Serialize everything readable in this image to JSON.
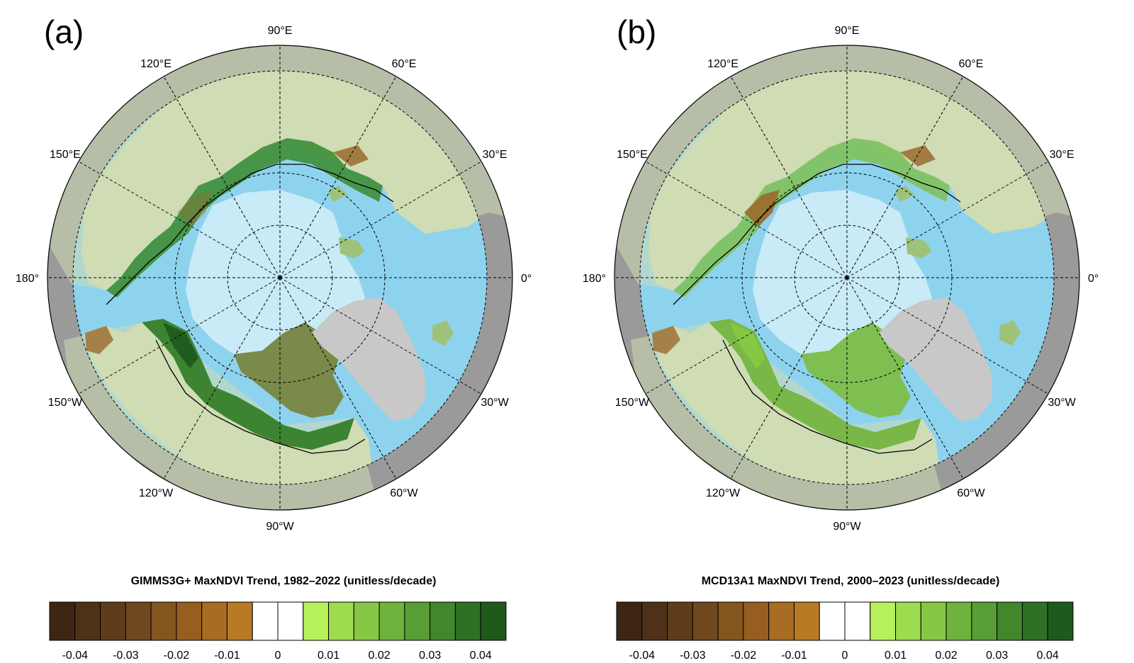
{
  "panels": [
    {
      "letter": "(a)",
      "lon_labels": [
        "90°E",
        "60°E",
        "30°E",
        "0°",
        "30°W",
        "60°W",
        "90°W",
        "120°W",
        "150°W",
        "180°",
        "150°E",
        "120°E"
      ],
      "colorbar": {
        "title": "GIMMS3G+ MaxNDVI Trend, 1982–2022 (unitless/decade)",
        "ticks": [
          "-0.04",
          "-0.03",
          "-0.02",
          "-0.01",
          "0",
          "0.01",
          "0.02",
          "0.03",
          "0.04"
        ]
      },
      "greening": "strong"
    },
    {
      "letter": "(b)",
      "lon_labels": [
        "90°E",
        "60°E",
        "30°E",
        "0°",
        "30°W",
        "60°W",
        "90°W",
        "120°W",
        "150°W",
        "180°",
        "150°E",
        "120°E"
      ],
      "colorbar": {
        "title": "MCD13A1 MaxNDVI Trend, 2000–2023 (unitless/decade)",
        "ticks": [
          "-0.04",
          "-0.03",
          "-0.02",
          "-0.01",
          "0",
          "0.01",
          "0.02",
          "0.03",
          "0.04"
        ]
      },
      "greening": "moderate"
    }
  ],
  "colors": {
    "ocean": "#8ed3ee",
    "sea_ice": "#c9eaf7",
    "outer_ring": "#9a9a9a",
    "greenland": "#c8c8c8",
    "boreal_land": "#cfdcb4",
    "brown_trend": "#9a6a2c",
    "green_trend": "#3a8a2a",
    "colorbar_classes": [
      "#3d2714",
      "#4e3217",
      "#5f3d1b",
      "#70481e",
      "#83561f",
      "#965f20",
      "#a86c22",
      "#b97a25",
      "#ffffff",
      "#ffffff",
      "#b6f05a",
      "#9ddc4e",
      "#86c845",
      "#6fb33c",
      "#589e34",
      "#42872c",
      "#2f7024",
      "#1e5a1c"
    ]
  }
}
